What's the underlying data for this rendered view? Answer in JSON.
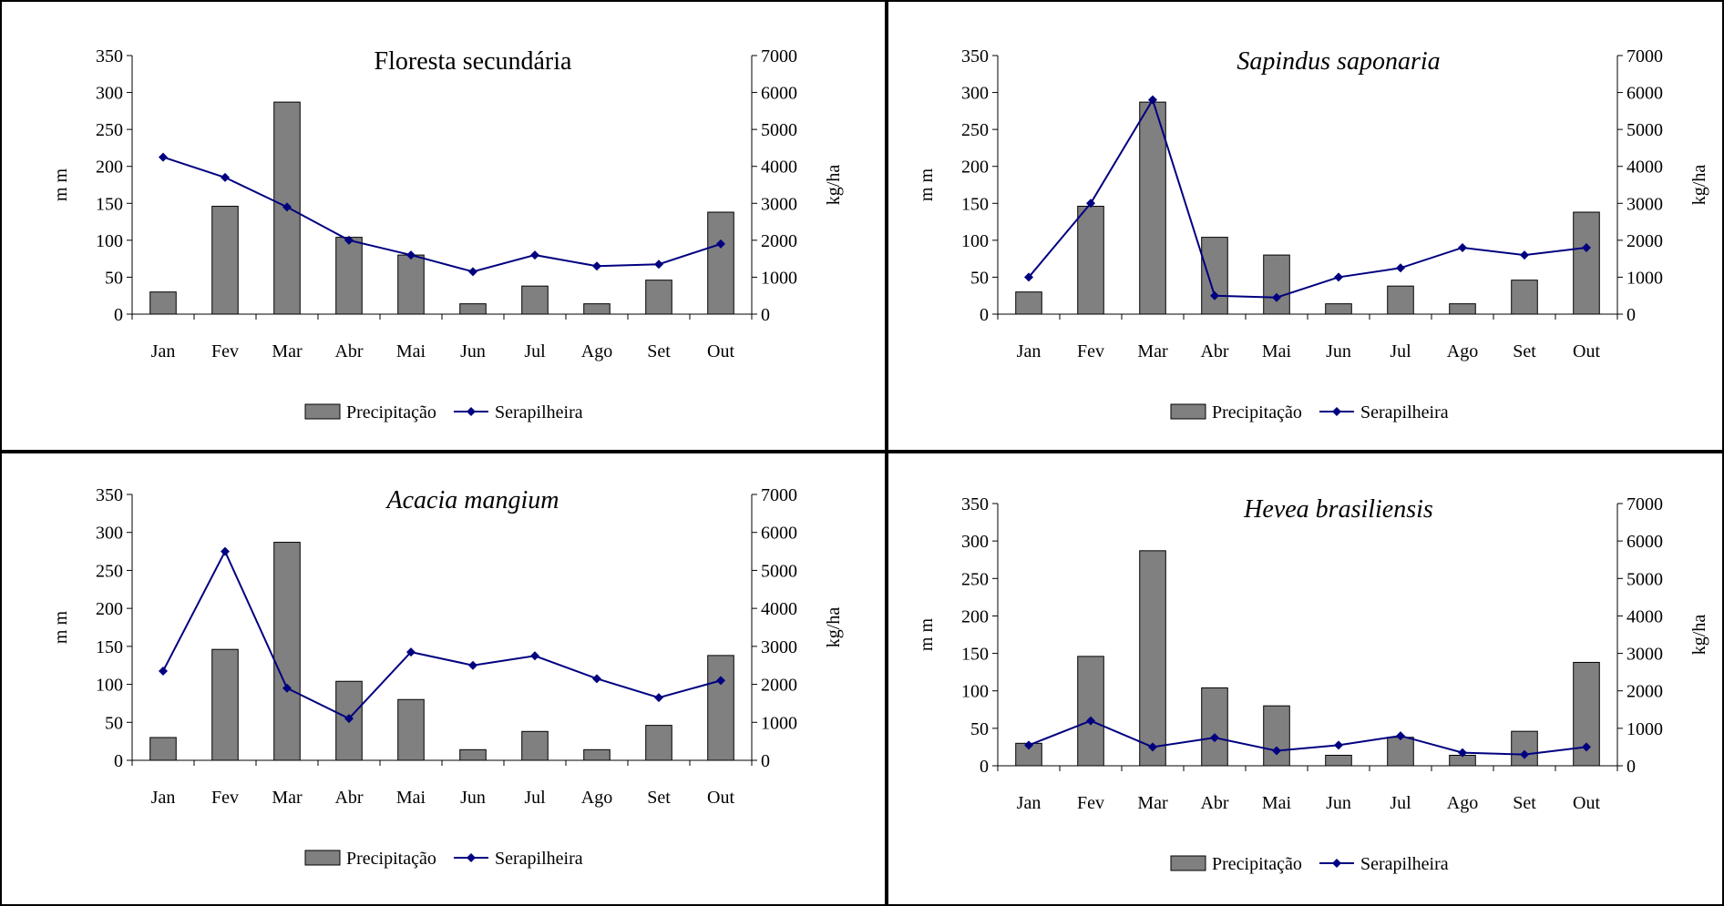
{
  "legend": {
    "bar_label": "Precipitação",
    "line_label": "Serapilheira"
  },
  "axes": {
    "left_label": "m m",
    "right_label": "kg/ha"
  },
  "colors": {
    "bar_fill": "#808080",
    "line": "#000080",
    "border": "#000000"
  },
  "chart_data": [
    {
      "type": "bar+line",
      "title": "Floresta secundária",
      "title_italic": false,
      "categories": [
        "Jan",
        "Fev",
        "Mar",
        "Abr",
        "Mai",
        "Jun",
        "Jul",
        "Ago",
        "Set",
        "Out"
      ],
      "series": [
        {
          "name": "Precipitação",
          "type": "bar",
          "axis": "left",
          "values": [
            30,
            146,
            287,
            104,
            80,
            14,
            38,
            14,
            46,
            138
          ]
        },
        {
          "name": "Serapilheira",
          "type": "line",
          "axis": "right",
          "values": [
            4250,
            3700,
            2900,
            2000,
            1600,
            1150,
            1600,
            1300,
            1350,
            1900
          ]
        }
      ],
      "ylabel": "m m",
      "y2label": "kg/ha",
      "ylim": [
        0,
        350
      ],
      "y2lim": [
        0,
        7000
      ],
      "yticks": [
        0,
        50,
        100,
        150,
        200,
        250,
        300,
        350
      ],
      "y2ticks": [
        0,
        1000,
        2000,
        3000,
        4000,
        5000,
        6000,
        7000
      ],
      "legend_position": "bottom",
      "grid": false
    },
    {
      "type": "bar+line",
      "title": "Sapindus saponaria",
      "title_italic": true,
      "categories": [
        "Jan",
        "Fev",
        "Mar",
        "Abr",
        "Mai",
        "Jun",
        "Jul",
        "Ago",
        "Set",
        "Out"
      ],
      "series": [
        {
          "name": "Precipitação",
          "type": "bar",
          "axis": "left",
          "values": [
            30,
            146,
            287,
            104,
            80,
            14,
            38,
            14,
            46,
            138
          ]
        },
        {
          "name": "Serapilheira",
          "type": "line",
          "axis": "right",
          "values": [
            1000,
            3000,
            5800,
            500,
            450,
            1000,
            1250,
            1800,
            1600,
            1800
          ]
        }
      ],
      "ylabel": "m m",
      "y2label": "kg/ha",
      "ylim": [
        0,
        350
      ],
      "y2lim": [
        0,
        7000
      ],
      "yticks": [
        0,
        50,
        100,
        150,
        200,
        250,
        300,
        350
      ],
      "y2ticks": [
        0,
        1000,
        2000,
        3000,
        4000,
        5000,
        6000,
        7000
      ],
      "legend_position": "bottom",
      "grid": false
    },
    {
      "type": "bar+line",
      "title": "Acacia mangium",
      "title_italic": true,
      "categories": [
        "Jan",
        "Fev",
        "Mar",
        "Abr",
        "Mai",
        "Jun",
        "Jul",
        "Ago",
        "Set",
        "Out"
      ],
      "series": [
        {
          "name": "Precipitação",
          "type": "bar",
          "axis": "left",
          "values": [
            30,
            146,
            287,
            104,
            80,
            14,
            38,
            14,
            46,
            138
          ]
        },
        {
          "name": "Serapilheira",
          "type": "line",
          "axis": "right",
          "values": [
            2350,
            5500,
            1900,
            1100,
            2850,
            2500,
            2750,
            2150,
            1650,
            2100
          ]
        }
      ],
      "ylabel": "m m",
      "y2label": "kg/ha",
      "ylim": [
        0,
        350
      ],
      "y2lim": [
        0,
        7000
      ],
      "yticks": [
        0,
        50,
        100,
        150,
        200,
        250,
        300,
        350
      ],
      "y2ticks": [
        0,
        1000,
        2000,
        3000,
        4000,
        5000,
        6000,
        7000
      ],
      "legend_position": "bottom",
      "grid": false
    },
    {
      "type": "bar+line",
      "title": "Hevea brasiliensis",
      "title_italic": true,
      "categories": [
        "Jan",
        "Fev",
        "Mar",
        "Abr",
        "Mai",
        "Jun",
        "Jul",
        "Ago",
        "Set",
        "Out"
      ],
      "series": [
        {
          "name": "Precipitação",
          "type": "bar",
          "axis": "left",
          "values": [
            30,
            146,
            287,
            104,
            80,
            14,
            38,
            14,
            46,
            138
          ]
        },
        {
          "name": "Serapilheira",
          "type": "line",
          "axis": "right",
          "values": [
            550,
            1200,
            500,
            750,
            400,
            550,
            800,
            350,
            300,
            500
          ]
        }
      ],
      "ylabel": "m m",
      "y2label": "kg/ha",
      "ylim": [
        0,
        350
      ],
      "y2lim": [
        0,
        7000
      ],
      "yticks": [
        0,
        50,
        100,
        150,
        200,
        250,
        300,
        350
      ],
      "y2ticks": [
        0,
        1000,
        2000,
        3000,
        4000,
        5000,
        6000,
        7000
      ],
      "legend_position": "bottom",
      "grid": false
    }
  ]
}
